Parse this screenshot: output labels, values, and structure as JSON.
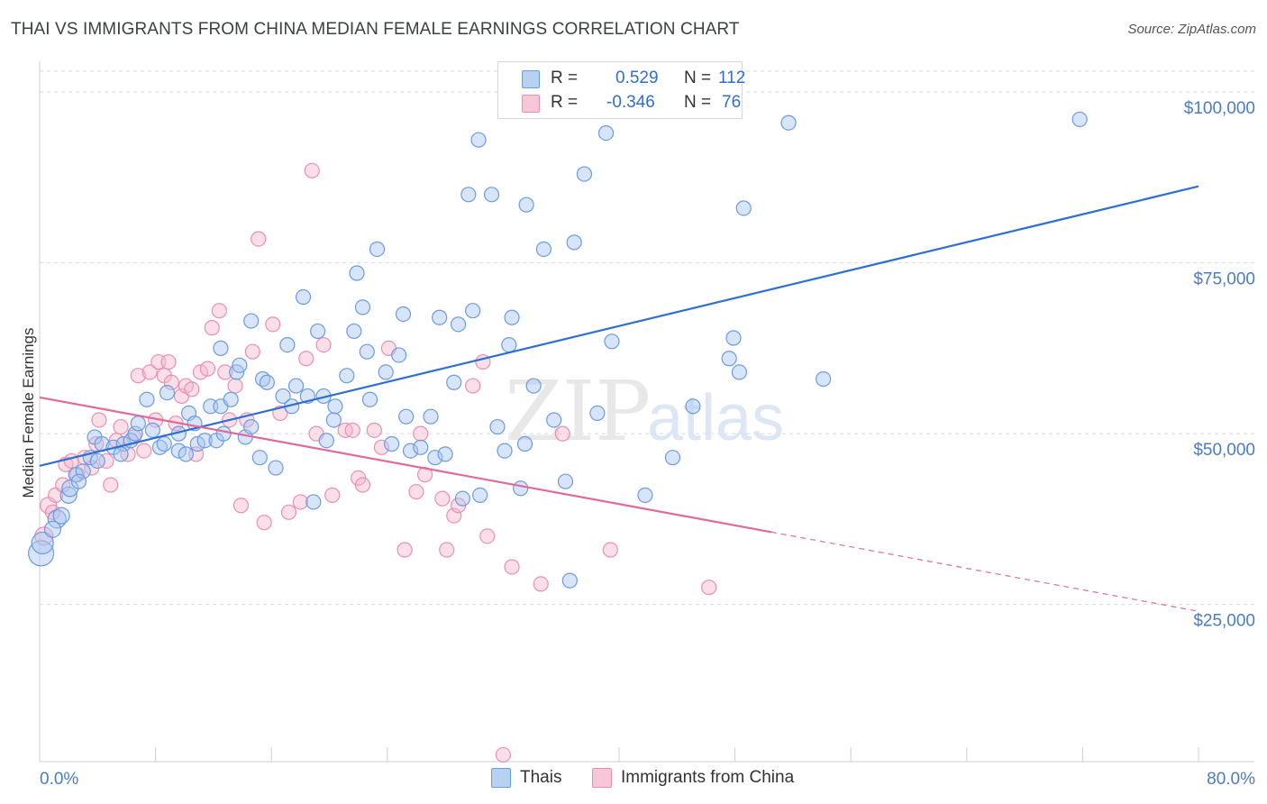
{
  "title": "THAI VS IMMIGRANTS FROM CHINA MEDIAN FEMALE EARNINGS CORRELATION CHART",
  "source": "Source: ZipAtlas.com",
  "watermark": {
    "zip": "ZIP",
    "atlas": "atlas"
  },
  "legend": {
    "series1": {
      "r_label": "R =",
      "r_value": "0.529",
      "n_label": "N =",
      "n_value": "112"
    },
    "series2": {
      "r_label": "R =",
      "r_value": "-0.346",
      "n_label": "N =",
      "n_value": "76"
    }
  },
  "colors": {
    "blue": "#2f6fd1",
    "blue_fill": "#a9c6ef",
    "blue_stroke": "#6b9be0",
    "pink": "#e06a9a",
    "pink_fill": "#f5b7cd",
    "pink_stroke": "#ea8fb2",
    "grid": "#d9d9d9",
    "tick_text": "#4a7cc7"
  },
  "chart_data": {
    "type": "scatter",
    "title": "THAI VS IMMIGRANTS FROM CHINA MEDIAN FEMALE EARNINGS CORRELATION CHART",
    "xlabel": "",
    "ylabel": "Median Female Earnings",
    "xlim": [
      0,
      80
    ],
    "ylim": [
      2000,
      104500
    ],
    "x_tick_labels": [
      {
        "value": 0,
        "label": "0.0%"
      },
      {
        "value": 80,
        "label": "80.0%"
      }
    ],
    "y_ticks": [
      {
        "value": 25000,
        "label": "$25,000"
      },
      {
        "value": 50000,
        "label": "$50,000"
      },
      {
        "value": 75000,
        "label": "$75,000"
      },
      {
        "value": 100000,
        "label": "$100,000"
      }
    ],
    "x_minor_ticks": [
      8,
      16,
      24,
      40,
      48,
      56,
      64,
      72
    ],
    "series": [
      {
        "name": "Thais",
        "color": "#2f6fd1",
        "r": 0.529,
        "n": 112,
        "trend": {
          "x0": 0,
          "y0": 45300,
          "x1": 80,
          "y1": 86200
        },
        "points": [
          [
            0.1,
            32500,
            14
          ],
          [
            0.2,
            34000,
            12
          ],
          [
            1.2,
            37500,
            10
          ],
          [
            1.5,
            38000,
            9
          ],
          [
            2.0,
            41000,
            9
          ],
          [
            2.1,
            42000,
            9
          ],
          [
            2.5,
            44000,
            8
          ],
          [
            3.0,
            44500,
            8
          ],
          [
            3.5,
            46500,
            8
          ],
          [
            4.0,
            46000,
            8
          ],
          [
            3.8,
            49500,
            8
          ],
          [
            4.3,
            48500,
            8
          ],
          [
            5.1,
            48000,
            8
          ],
          [
            5.8,
            48500,
            8
          ],
          [
            6.3,
            49000,
            8
          ],
          [
            6.6,
            50000,
            8
          ],
          [
            6.8,
            51500,
            8
          ],
          [
            7.4,
            55000,
            8
          ],
          [
            8.3,
            48000,
            8
          ],
          [
            8.6,
            48500,
            8
          ],
          [
            8.8,
            56000,
            8
          ],
          [
            9.6,
            50000,
            8
          ],
          [
            9.6,
            47500,
            8
          ],
          [
            10.1,
            47000,
            8
          ],
          [
            10.3,
            53000,
            8
          ],
          [
            10.7,
            51500,
            8
          ],
          [
            10.9,
            48500,
            8
          ],
          [
            11.4,
            49000,
            8
          ],
          [
            11.8,
            54000,
            8
          ],
          [
            12.2,
            49000,
            8
          ],
          [
            12.5,
            54000,
            8
          ],
          [
            12.5,
            62500,
            8
          ],
          [
            12.7,
            50000,
            8
          ],
          [
            13.2,
            55000,
            8
          ],
          [
            13.6,
            59000,
            8
          ],
          [
            13.8,
            60000,
            8
          ],
          [
            14.2,
            49500,
            8
          ],
          [
            14.6,
            51000,
            8
          ],
          [
            14.6,
            66500,
            8
          ],
          [
            15.2,
            46500,
            8
          ],
          [
            15.4,
            58000,
            8
          ],
          [
            15.7,
            57500,
            8
          ],
          [
            16.3,
            45000,
            8
          ],
          [
            16.8,
            55500,
            8
          ],
          [
            17.1,
            63000,
            8
          ],
          [
            17.4,
            54000,
            8
          ],
          [
            17.7,
            57000,
            8
          ],
          [
            18.2,
            70000,
            8
          ],
          [
            18.5,
            55500,
            8
          ],
          [
            18.9,
            40000,
            8
          ],
          [
            19.2,
            65000,
            8
          ],
          [
            19.6,
            55500,
            8
          ],
          [
            19.8,
            49000,
            8
          ],
          [
            20.3,
            52000,
            8
          ],
          [
            20.4,
            54000,
            8
          ],
          [
            21.2,
            58500,
            8
          ],
          [
            21.7,
            65000,
            8
          ],
          [
            21.9,
            73500,
            8
          ],
          [
            22.3,
            68500,
            8
          ],
          [
            22.6,
            62000,
            8
          ],
          [
            22.8,
            55000,
            8
          ],
          [
            23.3,
            77000,
            8
          ],
          [
            23.9,
            59000,
            8
          ],
          [
            24.3,
            48500,
            8
          ],
          [
            24.8,
            61500,
            8
          ],
          [
            25.1,
            67500,
            8
          ],
          [
            25.3,
            52500,
            8
          ],
          [
            25.6,
            47500,
            8
          ],
          [
            26.3,
            48000,
            8
          ],
          [
            27.0,
            52500,
            8
          ],
          [
            27.3,
            46500,
            8
          ],
          [
            27.6,
            67000,
            8
          ],
          [
            28.0,
            47000,
            8
          ],
          [
            28.6,
            57500,
            8
          ],
          [
            28.9,
            66000,
            8
          ],
          [
            29.2,
            40500,
            8
          ],
          [
            29.6,
            85000,
            8
          ],
          [
            29.9,
            68000,
            8
          ],
          [
            30.3,
            93000,
            8
          ],
          [
            30.4,
            41000,
            8
          ],
          [
            31.2,
            85000,
            8
          ],
          [
            31.6,
            51000,
            8
          ],
          [
            32.1,
            47500,
            8
          ],
          [
            32.4,
            63000,
            8
          ],
          [
            32.6,
            67000,
            8
          ],
          [
            33.2,
            42000,
            8
          ],
          [
            33.5,
            48500,
            8
          ],
          [
            33.6,
            83500,
            8
          ],
          [
            34.1,
            57000,
            8
          ],
          [
            34.8,
            77000,
            8
          ],
          [
            35.5,
            52000,
            8
          ],
          [
            36.3,
            43000,
            8
          ],
          [
            36.6,
            28500,
            8
          ],
          [
            36.9,
            78000,
            8
          ],
          [
            37.6,
            88000,
            8
          ],
          [
            38.5,
            53000,
            8
          ],
          [
            39.1,
            94000,
            8
          ],
          [
            39.5,
            63500,
            8
          ],
          [
            41.8,
            41000,
            8
          ],
          [
            43.7,
            46500,
            8
          ],
          [
            45.1,
            54000,
            8
          ],
          [
            47.6,
            61000,
            8
          ],
          [
            47.9,
            64000,
            8
          ],
          [
            48.3,
            59000,
            8
          ],
          [
            48.6,
            83000,
            8
          ],
          [
            51.7,
            95500,
            8
          ],
          [
            54.1,
            58000,
            8
          ],
          [
            71.8,
            96000,
            8
          ],
          [
            0.9,
            36000,
            9
          ],
          [
            2.7,
            43000,
            8
          ],
          [
            5.6,
            47000,
            8
          ],
          [
            7.8,
            50500,
            8
          ]
        ]
      },
      {
        "name": "Immigrants from China",
        "color": "#e06a9a",
        "r": -0.346,
        "n": 76,
        "trend": {
          "x0": 0,
          "y0": 55300,
          "x1": 50.5,
          "y1": 35600
        },
        "trend_dashed": {
          "x0": 50.5,
          "y0": 35600,
          "x1": 80,
          "y1": 24000
        },
        "points": [
          [
            0.3,
            35000,
            10
          ],
          [
            0.6,
            39500,
            9
          ],
          [
            0.9,
            38500,
            8
          ],
          [
            1.1,
            41000,
            8
          ],
          [
            1.6,
            42500,
            8
          ],
          [
            1.8,
            45500,
            8
          ],
          [
            2.2,
            46000,
            8
          ],
          [
            2.6,
            44000,
            8
          ],
          [
            3.1,
            46500,
            8
          ],
          [
            3.6,
            45000,
            8
          ],
          [
            3.9,
            48500,
            8
          ],
          [
            4.1,
            52000,
            8
          ],
          [
            4.6,
            46000,
            8
          ],
          [
            4.9,
            42500,
            8
          ],
          [
            5.3,
            49000,
            8
          ],
          [
            5.6,
            51000,
            8
          ],
          [
            6.1,
            47000,
            8
          ],
          [
            6.5,
            49500,
            8
          ],
          [
            6.8,
            58500,
            8
          ],
          [
            7.2,
            47500,
            8
          ],
          [
            7.6,
            59000,
            8
          ],
          [
            8.0,
            52000,
            8
          ],
          [
            8.2,
            60500,
            8
          ],
          [
            8.6,
            58500,
            8
          ],
          [
            8.9,
            60500,
            8
          ],
          [
            9.1,
            57500,
            8
          ],
          [
            9.4,
            51500,
            8
          ],
          [
            9.8,
            55500,
            8
          ],
          [
            10.1,
            57000,
            8
          ],
          [
            10.5,
            56500,
            8
          ],
          [
            10.8,
            47000,
            8
          ],
          [
            11.1,
            59000,
            8
          ],
          [
            11.6,
            59500,
            8
          ],
          [
            11.9,
            65500,
            8
          ],
          [
            12.4,
            68000,
            8
          ],
          [
            12.8,
            59000,
            8
          ],
          [
            13.1,
            52000,
            8
          ],
          [
            13.5,
            57000,
            8
          ],
          [
            13.9,
            39500,
            8
          ],
          [
            14.3,
            52000,
            8
          ],
          [
            14.7,
            62000,
            8
          ],
          [
            15.1,
            78500,
            8
          ],
          [
            15.5,
            37000,
            8
          ],
          [
            16.1,
            66000,
            8
          ],
          [
            16.6,
            53000,
            8
          ],
          [
            17.2,
            38500,
            8
          ],
          [
            18.0,
            40000,
            8
          ],
          [
            18.4,
            61000,
            8
          ],
          [
            18.8,
            88500,
            8
          ],
          [
            19.1,
            50000,
            8
          ],
          [
            19.6,
            63000,
            8
          ],
          [
            20.2,
            41000,
            8
          ],
          [
            21.1,
            50500,
            8
          ],
          [
            21.6,
            50500,
            8
          ],
          [
            22.0,
            43500,
            8
          ],
          [
            22.3,
            42500,
            8
          ],
          [
            23.1,
            50500,
            8
          ],
          [
            23.6,
            48000,
            8
          ],
          [
            24.1,
            62500,
            8
          ],
          [
            25.2,
            33000,
            8
          ],
          [
            26.0,
            41500,
            8
          ],
          [
            26.3,
            50000,
            8
          ],
          [
            26.6,
            44000,
            8
          ],
          [
            27.8,
            40500,
            8
          ],
          [
            28.1,
            33000,
            8
          ],
          [
            28.6,
            38000,
            8
          ],
          [
            28.9,
            39500,
            8
          ],
          [
            29.9,
            57000,
            8
          ],
          [
            30.6,
            60500,
            8
          ],
          [
            30.9,
            35000,
            8
          ],
          [
            32.0,
            3000,
            8
          ],
          [
            32.6,
            30500,
            8
          ],
          [
            34.6,
            28000,
            8
          ],
          [
            36.1,
            50000,
            8
          ],
          [
            39.4,
            33000,
            8
          ],
          [
            46.2,
            27500,
            8
          ]
        ]
      }
    ]
  },
  "bottom_legend": {
    "item1": "Thais",
    "item2": "Immigrants from China"
  }
}
